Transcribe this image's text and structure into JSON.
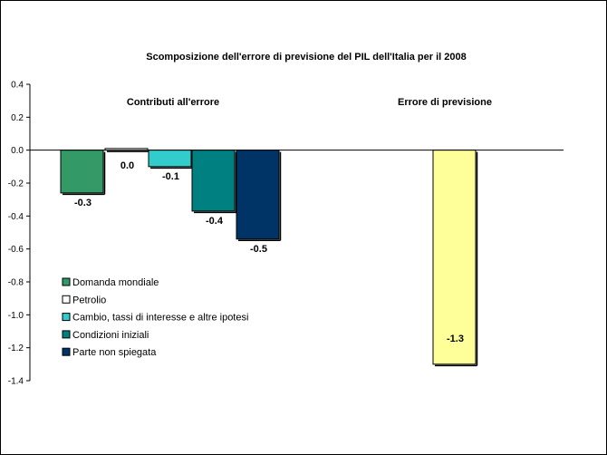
{
  "chart_data": {
    "type": "bar",
    "title": "Scomposizione dell'errore di previsione del PIL dell'Italia per il 2008",
    "xlabel": "",
    "ylabel": "",
    "ylim": [
      -1.4,
      0.4
    ],
    "yticks": [
      "0.4",
      "0.2",
      "0.0",
      "-0.2",
      "-0.4",
      "-0.6",
      "-0.8",
      "-1.0",
      "-1.2",
      "-1.4"
    ],
    "grid": false,
    "legend_position": "bottom-left",
    "groups": [
      {
        "label": "Contributi all'errore",
        "series": [
          0,
          1,
          2,
          3,
          4
        ]
      },
      {
        "label": "Errore di previsione",
        "series": [
          5
        ]
      }
    ],
    "series": [
      {
        "name": "Domanda mondiale",
        "value": -0.26,
        "label": "-0.3",
        "color": "#339966"
      },
      {
        "name": "Petrolio",
        "value": 0.01,
        "label": "0.0",
        "color": "#ffffff"
      },
      {
        "name": "Cambio, tassi di interesse e altre ipotesi",
        "value": -0.1,
        "label": "-0.1",
        "color": "#33cccc"
      },
      {
        "name": "Condizioni iniziali",
        "value": -0.37,
        "label": "-0.4",
        "color": "#008080"
      },
      {
        "name": "Parte non spiegata",
        "value": -0.54,
        "label": "-0.5",
        "color": "#003366"
      },
      {
        "name": "",
        "value": -1.3,
        "label": "-1.3",
        "color": "#ffff99"
      }
    ]
  }
}
